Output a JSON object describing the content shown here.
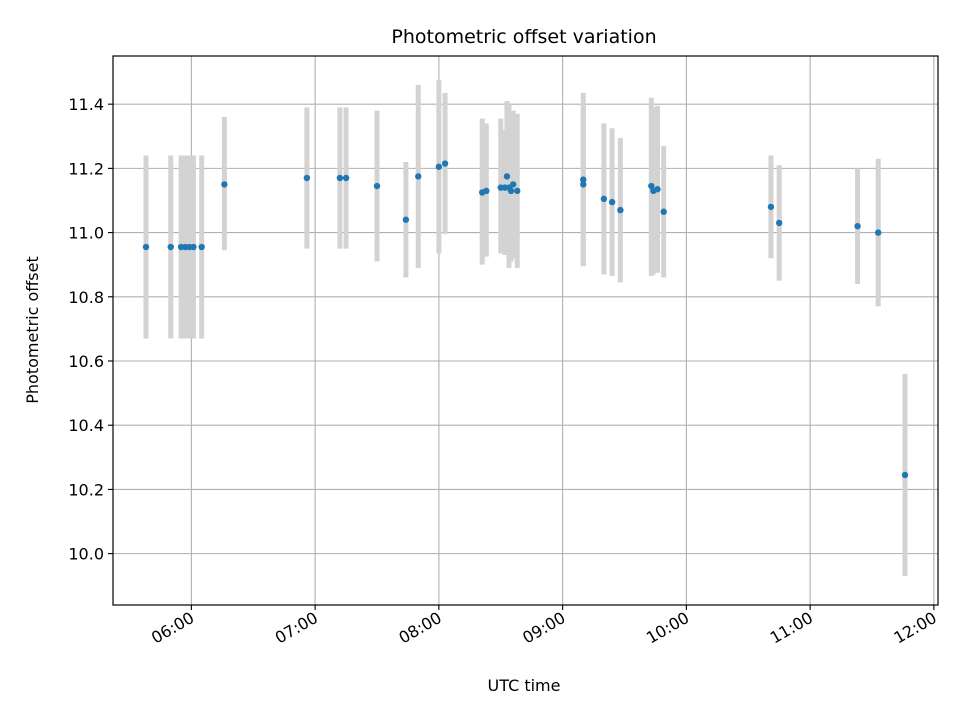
{
  "chart_data": {
    "type": "scatter",
    "title": "Photometric offset variation",
    "xlabel": "UTC time",
    "ylabel": "Photometric offset",
    "x_unit": "UTC time (HH:MM)",
    "xlim": [
      "05:22",
      "12:02"
    ],
    "ylim": [
      9.84,
      11.55
    ],
    "grid": true,
    "x_ticks": [
      "06:00",
      "07:00",
      "08:00",
      "09:00",
      "10:00",
      "11:00",
      "12:00"
    ],
    "y_ticks": [
      "10.0",
      "10.2",
      "10.4",
      "10.6",
      "10.8",
      "11.0",
      "11.2",
      "11.4"
    ],
    "colors": {
      "point": "#1f77b4",
      "errorbar": "#d3d3d3",
      "grid": "#b0b0b0"
    },
    "points": [
      {
        "t": "05:38",
        "y": 10.955,
        "lo": 10.67,
        "hi": 11.24
      },
      {
        "t": "05:50",
        "y": 10.955,
        "lo": 10.67,
        "hi": 11.24
      },
      {
        "t": "05:55",
        "y": 10.955,
        "lo": 10.67,
        "hi": 11.24
      },
      {
        "t": "05:57",
        "y": 10.955,
        "lo": 10.67,
        "hi": 11.24
      },
      {
        "t": "05:59",
        "y": 10.955,
        "lo": 10.67,
        "hi": 11.24
      },
      {
        "t": "06:01",
        "y": 10.955,
        "lo": 10.67,
        "hi": 11.24
      },
      {
        "t": "06:05",
        "y": 10.955,
        "lo": 10.67,
        "hi": 11.24
      },
      {
        "t": "06:16",
        "y": 11.15,
        "lo": 10.945,
        "hi": 11.36
      },
      {
        "t": "06:56",
        "y": 11.17,
        "lo": 10.95,
        "hi": 11.39
      },
      {
        "t": "07:12",
        "y": 11.17,
        "lo": 10.95,
        "hi": 11.39
      },
      {
        "t": "07:15",
        "y": 11.17,
        "lo": 10.95,
        "hi": 11.39
      },
      {
        "t": "07:30",
        "y": 11.145,
        "lo": 10.91,
        "hi": 11.38
      },
      {
        "t": "07:44",
        "y": 11.04,
        "lo": 10.86,
        "hi": 11.22
      },
      {
        "t": "07:50",
        "y": 11.175,
        "lo": 10.89,
        "hi": 11.46
      },
      {
        "t": "08:00",
        "y": 11.205,
        "lo": 10.935,
        "hi": 11.475
      },
      {
        "t": "08:03",
        "y": 11.215,
        "lo": 10.995,
        "hi": 11.435
      },
      {
        "t": "08:21",
        "y": 11.125,
        "lo": 10.9,
        "hi": 11.355
      },
      {
        "t": "08:23",
        "y": 11.13,
        "lo": 10.925,
        "hi": 11.34
      },
      {
        "t": "08:30",
        "y": 11.14,
        "lo": 10.935,
        "hi": 11.355
      },
      {
        "t": "08:32",
        "y": 11.14,
        "lo": 10.93,
        "hi": 11.32
      },
      {
        "t": "08:33",
        "y": 11.175,
        "lo": 10.94,
        "hi": 11.41
      },
      {
        "t": "08:34",
        "y": 11.14,
        "lo": 10.89,
        "hi": 11.4
      },
      {
        "t": "08:35",
        "y": 11.13,
        "lo": 10.91,
        "hi": 11.36
      },
      {
        "t": "08:36",
        "y": 11.15,
        "lo": 10.92,
        "hi": 11.38
      },
      {
        "t": "08:38",
        "y": 11.13,
        "lo": 10.89,
        "hi": 11.37
      },
      {
        "t": "09:10",
        "y": 11.165,
        "lo": 10.895,
        "hi": 11.435
      },
      {
        "t": "09:10",
        "y": 11.15,
        "lo": 10.9,
        "hi": 11.4
      },
      {
        "t": "09:20",
        "y": 11.105,
        "lo": 10.87,
        "hi": 11.34
      },
      {
        "t": "09:24",
        "y": 11.095,
        "lo": 10.865,
        "hi": 11.325
      },
      {
        "t": "09:28",
        "y": 11.07,
        "lo": 10.845,
        "hi": 11.295
      },
      {
        "t": "09:43",
        "y": 11.145,
        "lo": 10.865,
        "hi": 11.42
      },
      {
        "t": "09:44",
        "y": 11.13,
        "lo": 10.87,
        "hi": 11.39
      },
      {
        "t": "09:46",
        "y": 11.135,
        "lo": 10.875,
        "hi": 11.395
      },
      {
        "t": "09:49",
        "y": 11.065,
        "lo": 10.86,
        "hi": 11.27
      },
      {
        "t": "10:41",
        "y": 11.08,
        "lo": 10.92,
        "hi": 11.24
      },
      {
        "t": "10:45",
        "y": 11.03,
        "lo": 10.85,
        "hi": 11.21
      },
      {
        "t": "11:23",
        "y": 11.02,
        "lo": 10.84,
        "hi": 11.2
      },
      {
        "t": "11:33",
        "y": 11.0,
        "lo": 10.77,
        "hi": 11.23
      },
      {
        "t": "11:46",
        "y": 10.245,
        "lo": 9.93,
        "hi": 10.56
      }
    ]
  }
}
